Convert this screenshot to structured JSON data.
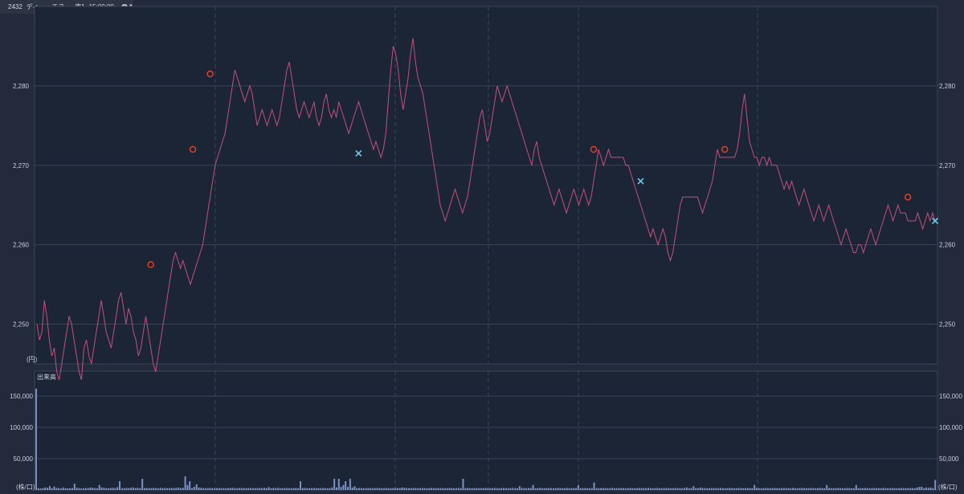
{
  "header": {
    "symbol": "2432",
    "name": "ディー・エヌ…",
    "market": "東1",
    "time": "15:00:00"
  },
  "price_panel": {
    "unit_label": "(円)",
    "y_ticks": [
      "2,280",
      "2,270",
      "2,260",
      "2,250"
    ]
  },
  "volume_panel": {
    "title": "出来高",
    "unit_label": "(株/口)",
    "y_ticks": [
      "150,000",
      "100,000",
      "50,000"
    ]
  },
  "colors": {
    "background": "#232a3b",
    "plot_background": "#1b2536",
    "price_line": "#c2507e",
    "buy_marker": "#e0402a",
    "sell_marker": "#6fc8e8",
    "volume_bar": "#7c93c7",
    "grid": "#3a4558"
  },
  "chart_data": [
    {
      "type": "line",
      "series_name": "",
      "ylim": [
        2245,
        2290
      ],
      "y_ticks": [
        2250,
        2260,
        2270,
        2280
      ],
      "grid": true,
      "y_axis": "both sides",
      "points_index_count": 360,
      "series": [
        {
          "name": "",
          "values": [
            2250,
            2248,
            2249,
            2253,
            2251,
            2248,
            2246,
            2247,
            2244,
            2243,
            2245,
            2247,
            2249,
            2251,
            2250,
            2248,
            2246,
            2244,
            2243,
            2247,
            2248,
            2246,
            2245,
            2247,
            2249,
            2251,
            2253,
            2251,
            2249,
            2248,
            2247,
            2249,
            2251,
            2253,
            2254,
            2252,
            2250,
            2252,
            2251,
            2249,
            2248,
            2246,
            2247,
            2249,
            2251,
            2249,
            2247,
            2245,
            2244,
            2246,
            2248,
            2250,
            2252,
            2254,
            2256,
            2258,
            2259,
            2258,
            2257,
            2258,
            2257,
            2256,
            2255,
            2256,
            2257,
            2258,
            2259,
            2260,
            2262,
            2264,
            2266,
            2268,
            2270,
            2271,
            2272,
            2273,
            2274,
            2276,
            2278,
            2280,
            2282,
            2281,
            2280,
            2279,
            2278,
            2279,
            2280,
            2279,
            2277,
            2275,
            2276,
            2277,
            2276,
            2275,
            2276,
            2277,
            2276,
            2275,
            2276,
            2278,
            2280,
            2282,
            2283,
            2281,
            2279,
            2277,
            2276,
            2277,
            2278,
            2277,
            2276,
            2277,
            2278,
            2276,
            2275,
            2276,
            2278,
            2279,
            2277,
            2276,
            2277,
            2276,
            2278,
            2277,
            2276,
            2275,
            2274,
            2275,
            2276,
            2277,
            2278,
            2277,
            2276,
            2275,
            2274,
            2273,
            2272,
            2273,
            2272,
            2271,
            2272,
            2274,
            2278,
            2282,
            2285,
            2284,
            2282,
            2279,
            2277,
            2279,
            2281,
            2284,
            2286,
            2283,
            2281,
            2280,
            2279,
            2277,
            2275,
            2273,
            2271,
            2269,
            2267,
            2265,
            2264,
            2263,
            2264,
            2265,
            2266,
            2267,
            2266,
            2265,
            2264,
            2265,
            2266,
            2268,
            2270,
            2272,
            2274,
            2276,
            2277,
            2275,
            2273,
            2274,
            2276,
            2278,
            2280,
            2279,
            2278,
            2279,
            2280,
            2279,
            2278,
            2277,
            2276,
            2275,
            2274,
            2273,
            2272,
            2271,
            2270,
            2272,
            2273,
            2271,
            2270,
            2269,
            2268,
            2267,
            2266,
            2265,
            2266,
            2267,
            2266,
            2265,
            2264,
            2265,
            2266,
            2267,
            2266,
            2265,
            2266,
            2267,
            2266,
            2265,
            2266,
            2268,
            2270,
            2272,
            2271,
            2270,
            2271,
            2272,
            2271,
            2271,
            2271,
            2271,
            2271,
            2271,
            2270,
            2270,
            2269,
            2268,
            2267,
            2266,
            2265,
            2264,
            2263,
            2262,
            2261,
            2262,
            2261,
            2260,
            2261,
            2262,
            2261,
            2259,
            2258,
            2259,
            2261,
            2263,
            2265,
            2266,
            2266,
            2266,
            2266,
            2266,
            2266,
            2266,
            2265,
            2264,
            2265,
            2266,
            2267,
            2268,
            2270,
            2272,
            2271,
            2271,
            2271,
            2271,
            2271,
            2271,
            2271,
            2272,
            2274,
            2277,
            2279,
            2276,
            2273,
            2272,
            2271,
            2271,
            2270,
            2271,
            2271,
            2270,
            2271,
            2270,
            2270,
            2270,
            2269,
            2268,
            2267,
            2268,
            2267,
            2268,
            2267,
            2266,
            2265,
            2266,
            2267,
            2266,
            2265,
            2264,
            2263,
            2264,
            2265,
            2264,
            2263,
            2264,
            2265,
            2264,
            2263,
            2262,
            2261,
            2260,
            2261,
            2262,
            2261,
            2260,
            2259,
            2259,
            2260,
            2260,
            2259,
            2260,
            2261,
            2262,
            2261,
            2260,
            2261,
            2262,
            2263,
            2264,
            2265,
            2264,
            2263,
            2264,
            2265,
            2264,
            2264,
            2264,
            2263,
            2263,
            2263,
            2263,
            2264,
            2263,
            2262,
            2263,
            2264,
            2263,
            2264,
            2263
          ]
        }
      ],
      "markers": [
        {
          "type": "buy",
          "index": 46,
          "value": 2257.5
        },
        {
          "type": "buy",
          "index": 63,
          "value": 2272
        },
        {
          "type": "buy",
          "index": 70,
          "value": 2281.5
        },
        {
          "type": "sell",
          "index": 130,
          "value": 2271.5
        },
        {
          "type": "buy",
          "index": 225,
          "value": 2272
        },
        {
          "type": "sell",
          "index": 244,
          "value": 2268
        },
        {
          "type": "buy",
          "index": 278,
          "value": 2272
        },
        {
          "type": "buy",
          "index": 352,
          "value": 2266
        },
        {
          "type": "sell",
          "index": 378,
          "value": 2263
        }
      ]
    },
    {
      "type": "bar",
      "series_name": "出来高",
      "ylim": [
        0,
        190000
      ],
      "y_ticks": [
        50000,
        100000,
        150000
      ],
      "grid": true,
      "values": [
        162000,
        3000,
        2500,
        2800,
        4000,
        3500,
        6000,
        2800,
        5500,
        3200,
        3000,
        2500,
        4000,
        2800,
        2600,
        3000,
        2900,
        10000,
        3500,
        3000,
        2500,
        2800,
        3200,
        3000,
        4000,
        3500,
        3000,
        2800,
        8000,
        4000,
        3500,
        3000,
        2800,
        3200,
        3500,
        3000,
        4500,
        14000,
        3000,
        2800,
        3200,
        3000,
        3500,
        4000,
        3000,
        3500,
        3000,
        18000,
        3000,
        3200,
        2800,
        3000,
        3200,
        3000,
        2800,
        3500,
        3000,
        3200,
        2800,
        3000,
        3200,
        3000,
        3500,
        4000,
        3000,
        3500,
        22000,
        8000,
        14000,
        3000,
        5000,
        9000,
        4000,
        3500,
        3000,
        2800,
        3000,
        3200,
        3000,
        2800,
        3000,
        3200,
        2800,
        3000,
        2800,
        3000,
        3200,
        3500,
        3000,
        2800,
        3000,
        3200,
        3000,
        2800,
        3000,
        3200,
        3000,
        2800,
        3000,
        3200,
        3000,
        3500,
        3000,
        4500,
        3000,
        3200,
        3000,
        3500,
        3000,
        2800,
        3000,
        3200,
        3000,
        2800,
        3000,
        3200,
        3000,
        14000,
        3000,
        3200,
        3000,
        2800,
        3000,
        3200,
        3000,
        2800,
        3000,
        3200,
        3000,
        2800,
        3000,
        4000,
        18000,
        4000,
        18000,
        5000,
        8000,
        14000,
        5000,
        18000,
        4000,
        6000,
        3000,
        3200,
        3000,
        2800,
        3000,
        3200,
        3000,
        2800,
        3000,
        3200,
        3000,
        2800,
        3000,
        3200,
        3000,
        2800,
        3000,
        3200,
        3000,
        2800,
        4000,
        3500,
        3000,
        2800,
        3000,
        3200,
        3000,
        2800,
        3000,
        3200,
        3000,
        2800,
        3000,
        3200,
        3000,
        2800,
        3000,
        3200,
        3000,
        2800,
        3000,
        3200,
        3000,
        2800,
        3000,
        3200,
        3000,
        18000,
        3000,
        3200,
        3000,
        2800,
        3000,
        3200,
        3000,
        2800,
        3000,
        3200,
        3000,
        2800,
        3000,
        3200,
        3000,
        2800,
        3000,
        3200,
        3000,
        2800,
        3000,
        3200,
        3000,
        2800,
        6000,
        3200,
        3000,
        2800,
        3000,
        3200,
        8000,
        2800,
        3000,
        3200,
        3000,
        2800,
        3000,
        3200,
        3000,
        2800,
        3000,
        3200,
        3000,
        2800,
        3000,
        3200,
        3000,
        2800,
        3000,
        3200,
        8000,
        2800,
        3000,
        3200,
        3000,
        2800,
        3000,
        12000,
        3000,
        2800,
        3000,
        3200,
        3000,
        2800,
        3000,
        3200,
        3000,
        2800,
        3000,
        3200,
        3000,
        2800,
        3000,
        3200,
        3000,
        2800,
        3000,
        3200,
        3000,
        2800,
        3000,
        3200,
        3000,
        2800,
        3000,
        3200,
        3000,
        2800,
        3000,
        3200,
        3000,
        2800,
        3000,
        3200,
        3000,
        2800,
        3000,
        3200,
        4000,
        2800,
        3000,
        6000,
        3000,
        2800,
        4000,
        3200,
        3000,
        2800,
        3000,
        3200,
        3000,
        2800,
        3000,
        3200,
        3000,
        2800,
        3000,
        3200,
        3000,
        2800,
        3000,
        3200,
        3000,
        2800,
        3000,
        3200,
        3000,
        2800,
        8000,
        3200,
        3000,
        2800,
        3000,
        3200,
        3000,
        2800,
        3000,
        3200,
        3000,
        2800,
        3000,
        3200,
        3000,
        2800,
        3000,
        3200,
        3000,
        2800,
        3000,
        3200,
        3000,
        2800,
        3000,
        3200,
        3000,
        2800,
        3000,
        3200,
        3000,
        2800,
        8000,
        3200,
        3000,
        2800,
        3000,
        3200,
        3000,
        2800,
        3000,
        3200,
        3000,
        2800,
        3000,
        8000,
        3000,
        2800,
        3000,
        3200,
        3000,
        2800,
        3000,
        3200,
        3000,
        2800,
        3000,
        3200,
        3000,
        2800,
        3000,
        3200,
        3000,
        2800,
        3000,
        3200,
        3000,
        2800,
        3000,
        3200,
        3000,
        2800,
        4000,
        5000,
        5000,
        3000,
        4000,
        3500,
        4000,
        3000,
        16000
      ]
    }
  ]
}
